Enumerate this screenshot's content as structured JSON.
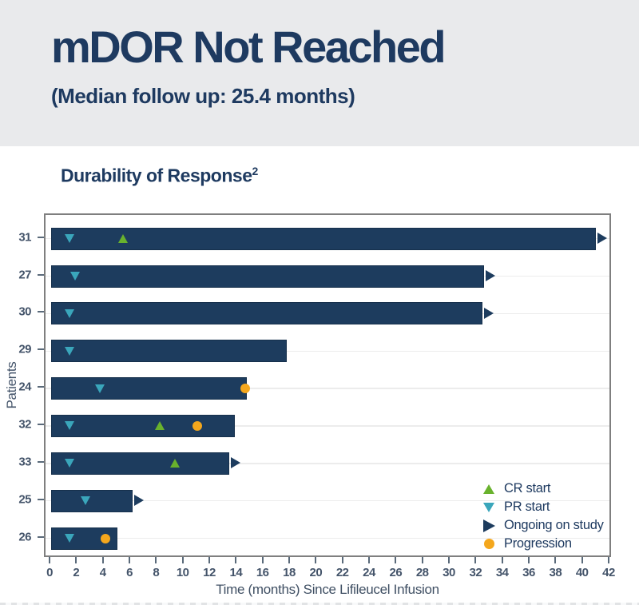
{
  "header": {
    "title": "mDOR Not Reached",
    "subtitle": "(Median follow up: 25.4 months)"
  },
  "chart": {
    "title": "Durability of Response",
    "title_superscript": "2"
  },
  "chart_data": {
    "type": "bar",
    "subtype": "swimmer-plot-horizontal",
    "title": "Durability of Response2",
    "ylabel": "Patients",
    "xlabel": "Time (months) Since Lifileucel Infusion",
    "xlim": [
      0,
      42
    ],
    "xticks": [
      0,
      2,
      4,
      6,
      8,
      10,
      12,
      14,
      16,
      18,
      20,
      22,
      24,
      26,
      28,
      30,
      32,
      34,
      36,
      38,
      40,
      42
    ],
    "grid": "horizontal-light",
    "legend_position": "inside-bottom-right",
    "categories": [
      "31",
      "27",
      "30",
      "29",
      "24",
      "32",
      "33",
      "25",
      "26"
    ],
    "bars": [
      {
        "patient": "31",
        "duration": 40.9,
        "ongoing": true,
        "pr_start": 1.4,
        "cr_start": 5.4,
        "progression": null
      },
      {
        "patient": "27",
        "duration": 32.5,
        "ongoing": true,
        "pr_start": 1.8,
        "cr_start": null,
        "progression": null
      },
      {
        "patient": "30",
        "duration": 32.4,
        "ongoing": true,
        "pr_start": 1.4,
        "cr_start": null,
        "progression": null
      },
      {
        "patient": "29",
        "duration": 17.7,
        "ongoing": false,
        "pr_start": 1.4,
        "cr_start": null,
        "progression": null
      },
      {
        "patient": "24",
        "duration": 14.7,
        "ongoing": false,
        "pr_start": 3.7,
        "cr_start": null,
        "progression": 14.6
      },
      {
        "patient": "32",
        "duration": 13.8,
        "ongoing": false,
        "pr_start": 1.4,
        "cr_start": 8.2,
        "progression": 11.0
      },
      {
        "patient": "33",
        "duration": 13.4,
        "ongoing": true,
        "pr_start": 1.4,
        "cr_start": 9.3,
        "progression": null
      },
      {
        "patient": "25",
        "duration": 6.1,
        "ongoing": true,
        "pr_start": 2.6,
        "cr_start": null,
        "progression": null
      },
      {
        "patient": "26",
        "duration": 5.0,
        "ongoing": false,
        "pr_start": 1.4,
        "cr_start": null,
        "progression": 4.1
      }
    ],
    "legend": [
      {
        "label": "CR start",
        "marker": "triangle-up-icon",
        "color": "#69b22d"
      },
      {
        "label": "PR start",
        "marker": "triangle-down-icon",
        "color": "#3aa6bb"
      },
      {
        "label": "Ongoing on study",
        "marker": "arrow-right-icon",
        "color": "#1d3c5e"
      },
      {
        "label": "Progression",
        "marker": "circle-icon",
        "color": "#f4a71d"
      }
    ],
    "colors": {
      "bar": "#1d3c5e",
      "cr_start": "#69b22d",
      "pr_start": "#3aa6bb",
      "progression": "#f4a71d",
      "axis_text": "#44546a",
      "heading_text": "#1e3a60",
      "header_background": "#e9eaec",
      "plot_border": "#7f7f7f",
      "gridline": "#ececec"
    }
  }
}
